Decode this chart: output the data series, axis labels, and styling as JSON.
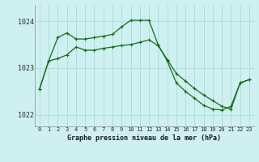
{
  "title": "Graphe pression niveau de la mer (hPa)",
  "bg_color": "#cef0f0",
  "grid_color": "#b0dede",
  "line_color": "#1a6b1a",
  "x_labels": [
    "0",
    "1",
    "2",
    "3",
    "4",
    "5",
    "6",
    "7",
    "8",
    "9",
    "10",
    "11",
    "12",
    "13",
    "14",
    "15",
    "16",
    "17",
    "18",
    "19",
    "20",
    "21",
    "22",
    "23"
  ],
  "series1_x": [
    0,
    1,
    2,
    3,
    4,
    5,
    6,
    7,
    8,
    9,
    10,
    11,
    12,
    13,
    14,
    15,
    16,
    17,
    18,
    19,
    20,
    21,
    22,
    23
  ],
  "series1_y": [
    1022.55,
    1023.15,
    1023.65,
    1023.75,
    1023.62,
    1023.62,
    1023.65,
    1023.68,
    1023.72,
    1023.88,
    1024.02,
    1024.02,
    1024.02,
    1023.5,
    1023.15,
    1022.68,
    1022.5,
    1022.35,
    1022.2,
    1022.12,
    1022.1,
    1022.18,
    1022.68,
    1022.75
  ],
  "series2_x": [
    0,
    1,
    2,
    3,
    4,
    5,
    6,
    7,
    8,
    9,
    10,
    11,
    12,
    13,
    14,
    15,
    16,
    17,
    18,
    19,
    20,
    21,
    22,
    23
  ],
  "series2_y": [
    1022.55,
    1023.15,
    1023.2,
    1023.28,
    1023.45,
    1023.38,
    1023.38,
    1023.42,
    1023.45,
    1023.48,
    1023.5,
    1023.55,
    1023.6,
    1023.48,
    1023.18,
    1022.88,
    1022.72,
    1022.56,
    1022.42,
    1022.3,
    1022.18,
    1022.12,
    1022.68,
    1022.75
  ],
  "ylim": [
    1021.75,
    1024.35
  ],
  "yticks": [
    1022,
    1023,
    1024
  ],
  "xlim": [
    -0.5,
    23.5
  ]
}
